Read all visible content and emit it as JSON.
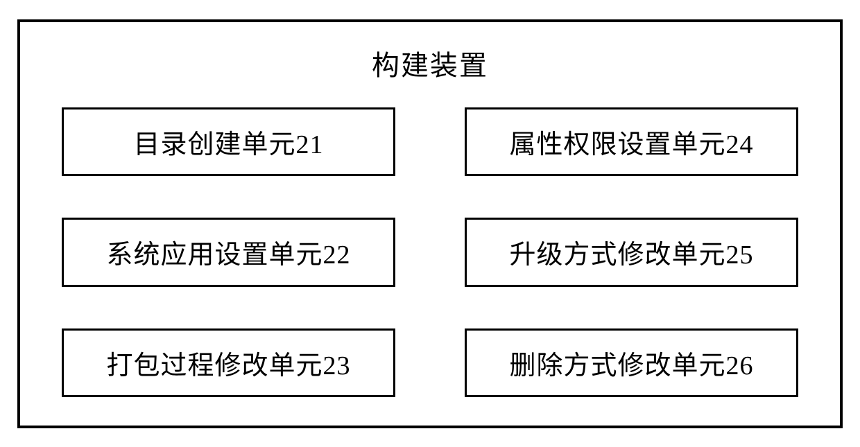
{
  "diagram": {
    "type": "block-diagram",
    "title": "构建装置",
    "title_fontsize": 40,
    "unit_fontsize": 38,
    "border_color": "#000000",
    "background_color": "#ffffff",
    "outer_border_width": 4,
    "inner_border_width": 3,
    "layout": {
      "columns": 2,
      "rows": 3,
      "column_gap": 100,
      "row_gap": 60
    },
    "units": [
      {
        "label": "目录创建单元21"
      },
      {
        "label": "属性权限设置单元24"
      },
      {
        "label": "系统应用设置单元22"
      },
      {
        "label": "升级方式修改单元25"
      },
      {
        "label": "打包过程修改单元23"
      },
      {
        "label": "删除方式修改单元26"
      }
    ]
  }
}
